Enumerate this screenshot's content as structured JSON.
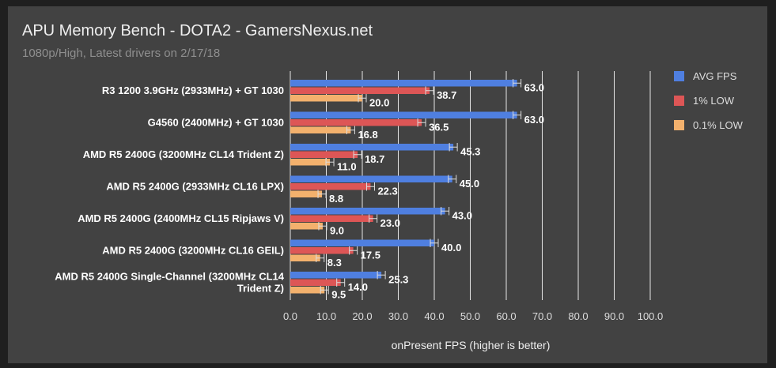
{
  "chart_data": {
    "type": "bar",
    "orientation": "horizontal",
    "title": "APU Memory Bench - DOTA2 - GamersNexus.net",
    "subtitle": "1080p/High, Latest drivers on 2/17/18",
    "xlabel": "onPresent FPS (higher is better)",
    "ylabel": "",
    "xlim": [
      0,
      100
    ],
    "xticks": [
      "0.0",
      "10.0",
      "20.0",
      "30.0",
      "40.0",
      "50.0",
      "60.0",
      "70.0",
      "80.0",
      "90.0",
      "100.0"
    ],
    "grid": true,
    "legend_position": "right",
    "categories": [
      [
        "R3 1200 3.9GHz (2933MHz) + GT 1030"
      ],
      [
        "G4560 (2400MHz) + GT 1030"
      ],
      [
        "AMD R5 2400G (3200MHz CL14 Trident Z)"
      ],
      [
        "AMD R5 2400G (2933MHz CL16 LPX)"
      ],
      [
        "AMD R5 2400G (2400MHz CL15 Ripjaws V)"
      ],
      [
        "AMD R5 2400G (3200MHz CL16 GEIL)"
      ],
      [
        "AMD R5 2400G Single-Channel (3200MHz CL14",
        "Trident Z)"
      ]
    ],
    "series": [
      {
        "name": "AVG FPS",
        "color": "#4f7fe0",
        "values": [
          63.0,
          63.0,
          45.3,
          45.0,
          43.0,
          40.0,
          25.3
        ],
        "labels": [
          "63.0",
          "63.0",
          "45.3",
          "45.0",
          "43.0",
          "40.0",
          "25.3"
        ]
      },
      {
        "name": "1% LOW",
        "color": "#dd5656",
        "values": [
          38.7,
          36.5,
          18.7,
          22.3,
          23.0,
          17.5,
          14.0
        ],
        "labels": [
          "38.7",
          "36.5",
          "18.7",
          "22.3",
          "23.0",
          "17.5",
          "14.0"
        ]
      },
      {
        "name": "0.1% LOW",
        "color": "#f3b16d",
        "values": [
          20.0,
          16.8,
          11.0,
          8.8,
          9.0,
          8.3,
          9.5
        ],
        "labels": [
          "20.0",
          "16.8",
          "11.0",
          "8.8",
          "9.0",
          "8.3",
          "9.5"
        ]
      }
    ]
  }
}
